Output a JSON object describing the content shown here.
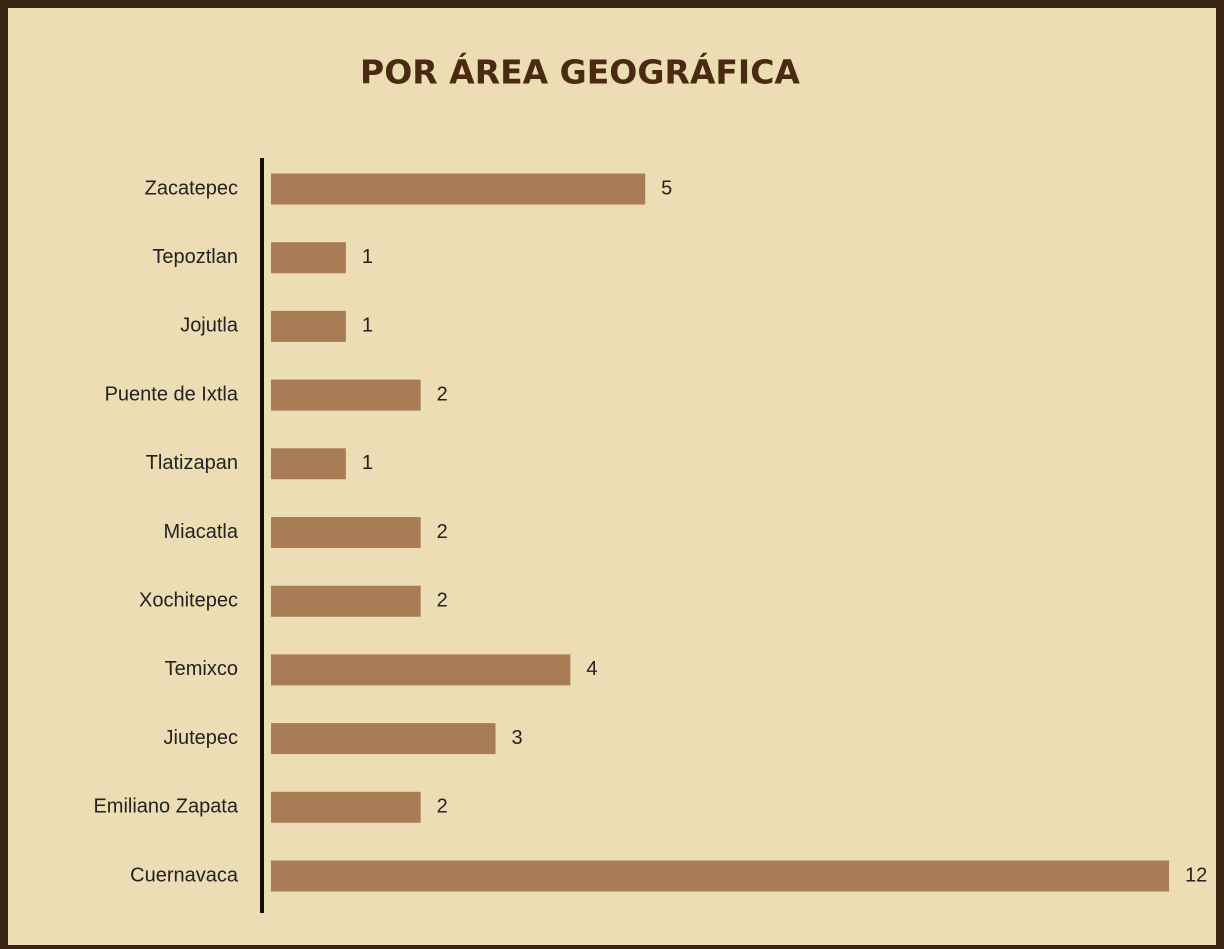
{
  "chart_data": {
    "type": "bar",
    "orientation": "horizontal",
    "title": "POR ÁREA GEOGRÁFICA",
    "categories": [
      "Zacatepec",
      "Tepoztlan",
      "Jojutla",
      "Puente de Ixtla",
      "Tlatizapan",
      "Miacatla",
      "Xochitepec",
      "Temixco",
      "Jiutepec",
      "Emiliano Zapata",
      "Cuernavaca"
    ],
    "values": [
      5,
      1,
      1,
      2,
      1,
      2,
      2,
      4,
      3,
      2,
      12
    ],
    "color": "#a87c55",
    "xlim": [
      0,
      12
    ]
  }
}
